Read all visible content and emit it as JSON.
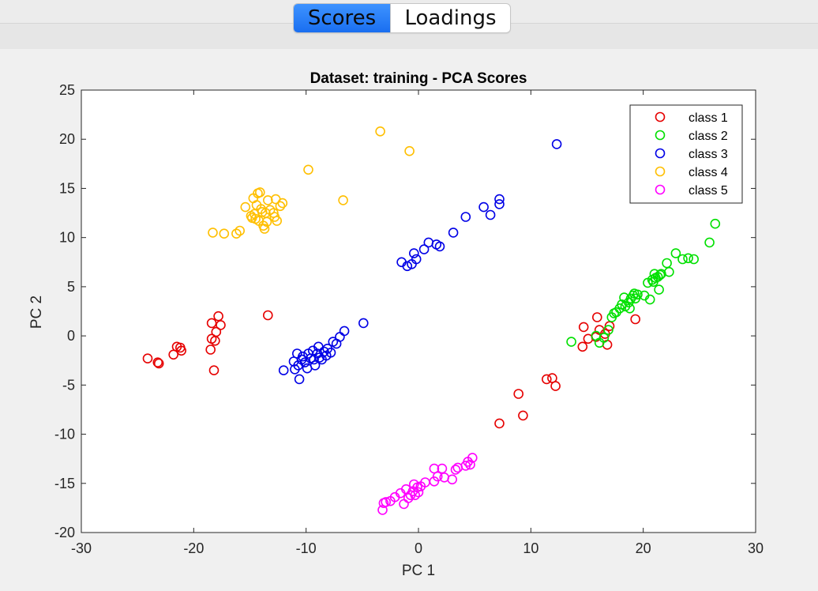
{
  "tabs": {
    "scores_label": "Scores",
    "loadings_label": "Loadings",
    "active": "Scores"
  },
  "chart_data": {
    "type": "scatter",
    "title": "Dataset: training - PCA Scores",
    "xlabel": "PC 1",
    "ylabel": "PC 2",
    "xlim": [
      -30,
      30
    ],
    "ylim": [
      -20,
      25
    ],
    "xticks": [
      -30,
      -20,
      -10,
      0,
      10,
      20,
      30
    ],
    "yticks": [
      -20,
      -15,
      -10,
      -5,
      0,
      5,
      10,
      15,
      20,
      25
    ],
    "marker": "open-circle",
    "legend_position": "top-right",
    "series": [
      {
        "name": "class 1",
        "color": "#e60000",
        "points": [
          [
            -24.1,
            -2.3
          ],
          [
            -23.2,
            -2.7
          ],
          [
            -23.1,
            -2.8
          ],
          [
            -21.8,
            -1.9
          ],
          [
            -21.5,
            -1.1
          ],
          [
            -21.2,
            -1.2
          ],
          [
            -21.1,
            -1.5
          ],
          [
            -18.5,
            -1.4
          ],
          [
            -18.4,
            -0.3
          ],
          [
            -18.4,
            1.3
          ],
          [
            -18.2,
            -3.5
          ],
          [
            -18.1,
            -0.5
          ],
          [
            -18.0,
            0.4
          ],
          [
            -17.8,
            2.0
          ],
          [
            -17.6,
            1.1
          ],
          [
            -13.4,
            2.1
          ],
          [
            7.2,
            -8.9
          ],
          [
            8.9,
            -5.9
          ],
          [
            9.3,
            -8.1
          ],
          [
            11.4,
            -4.4
          ],
          [
            11.9,
            -4.3
          ],
          [
            12.2,
            -5.1
          ],
          [
            14.6,
            -1.1
          ],
          [
            14.7,
            0.9
          ],
          [
            15.1,
            -0.3
          ],
          [
            15.8,
            -0.1
          ],
          [
            15.9,
            1.9
          ],
          [
            16.1,
            0.6
          ],
          [
            16.6,
            0.2
          ],
          [
            16.8,
            -0.9
          ],
          [
            17.0,
            1.0
          ],
          [
            19.3,
            1.7
          ]
        ]
      },
      {
        "name": "class 2",
        "color": "#00e000",
        "points": [
          [
            13.6,
            -0.6
          ],
          [
            15.8,
            0.0
          ],
          [
            16.1,
            -0.7
          ],
          [
            16.5,
            -0.2
          ],
          [
            16.9,
            0.6
          ],
          [
            17.2,
            1.9
          ],
          [
            17.4,
            2.3
          ],
          [
            17.6,
            2.4
          ],
          [
            17.9,
            2.8
          ],
          [
            18.1,
            3.2
          ],
          [
            18.3,
            3.9
          ],
          [
            18.4,
            3.0
          ],
          [
            18.7,
            3.4
          ],
          [
            18.8,
            2.8
          ],
          [
            18.9,
            3.8
          ],
          [
            19.1,
            4.1
          ],
          [
            19.2,
            4.3
          ],
          [
            19.3,
            3.8
          ],
          [
            19.5,
            4.2
          ],
          [
            20.1,
            4.1
          ],
          [
            20.4,
            5.4
          ],
          [
            20.6,
            3.7
          ],
          [
            20.8,
            5.7
          ],
          [
            20.9,
            5.5
          ],
          [
            21.0,
            6.3
          ],
          [
            21.1,
            5.9
          ],
          [
            21.3,
            6.0
          ],
          [
            21.4,
            4.7
          ],
          [
            21.5,
            6.2
          ],
          [
            21.6,
            6.3
          ],
          [
            22.1,
            7.4
          ],
          [
            22.3,
            6.5
          ],
          [
            22.9,
            8.4
          ],
          [
            23.5,
            7.8
          ],
          [
            24.0,
            7.9
          ],
          [
            24.5,
            7.8
          ],
          [
            25.9,
            9.5
          ],
          [
            26.4,
            11.4
          ]
        ]
      },
      {
        "name": "class 3",
        "color": "#0000e6",
        "points": [
          [
            -12.0,
            -3.5
          ],
          [
            -11.1,
            -2.6
          ],
          [
            -11.0,
            -3.4
          ],
          [
            -10.8,
            -1.8
          ],
          [
            -10.7,
            -3.0
          ],
          [
            -10.6,
            -4.4
          ],
          [
            -10.4,
            -2.4
          ],
          [
            -10.3,
            -2.1
          ],
          [
            -10.1,
            -2.7
          ],
          [
            -9.9,
            -3.3
          ],
          [
            -9.8,
            -1.8
          ],
          [
            -9.6,
            -2.3
          ],
          [
            -9.4,
            -1.5
          ],
          [
            -9.3,
            -2.4
          ],
          [
            -9.2,
            -3.0
          ],
          [
            -9.0,
            -1.8
          ],
          [
            -8.9,
            -1.1
          ],
          [
            -8.8,
            -2.2
          ],
          [
            -8.6,
            -2.4
          ],
          [
            -8.4,
            -1.6
          ],
          [
            -8.2,
            -2.0
          ],
          [
            -8.1,
            -1.3
          ],
          [
            -7.8,
            -1.7
          ],
          [
            -7.6,
            -0.6
          ],
          [
            -7.3,
            -0.8
          ],
          [
            -7.0,
            -0.1
          ],
          [
            -6.6,
            0.5
          ],
          [
            -4.9,
            1.3
          ],
          [
            -1.5,
            7.5
          ],
          [
            -1.0,
            7.1
          ],
          [
            -0.6,
            7.3
          ],
          [
            -0.4,
            8.4
          ],
          [
            -0.2,
            7.8
          ],
          [
            0.5,
            8.8
          ],
          [
            0.9,
            9.5
          ],
          [
            1.6,
            9.3
          ],
          [
            1.9,
            9.1
          ],
          [
            3.1,
            10.5
          ],
          [
            4.2,
            12.1
          ],
          [
            5.8,
            13.1
          ],
          [
            6.4,
            12.3
          ],
          [
            7.2,
            13.4
          ],
          [
            7.2,
            13.9
          ],
          [
            12.3,
            19.5
          ]
        ]
      },
      {
        "name": "class 4",
        "color": "#ffbf00",
        "points": [
          [
            -18.3,
            10.5
          ],
          [
            -17.3,
            10.4
          ],
          [
            -16.2,
            10.4
          ],
          [
            -15.9,
            10.7
          ],
          [
            -15.4,
            13.1
          ],
          [
            -14.9,
            12.2
          ],
          [
            -14.8,
            12.0
          ],
          [
            -14.7,
            14.0
          ],
          [
            -14.6,
            12.4
          ],
          [
            -14.5,
            11.9
          ],
          [
            -14.4,
            13.3
          ],
          [
            -14.3,
            14.5
          ],
          [
            -14.2,
            11.7
          ],
          [
            -14.1,
            14.6
          ],
          [
            -14.0,
            12.9
          ],
          [
            -13.9,
            12.6
          ],
          [
            -13.8,
            11.2
          ],
          [
            -13.7,
            10.9
          ],
          [
            -13.6,
            12.5
          ],
          [
            -13.5,
            11.6
          ],
          [
            -13.4,
            13.8
          ],
          [
            -13.2,
            12.8
          ],
          [
            -12.9,
            12.5
          ],
          [
            -12.8,
            12.1
          ],
          [
            -12.7,
            13.9
          ],
          [
            -12.6,
            11.7
          ],
          [
            -12.3,
            13.2
          ],
          [
            -12.1,
            13.5
          ],
          [
            -9.8,
            16.9
          ],
          [
            -6.7,
            13.8
          ],
          [
            -3.4,
            20.8
          ],
          [
            -0.8,
            18.8
          ]
        ]
      },
      {
        "name": "class 5",
        "color": "#ff00ff",
        "points": [
          [
            -3.2,
            -17.7
          ],
          [
            -3.1,
            -17.0
          ],
          [
            -2.9,
            -16.9
          ],
          [
            -2.5,
            -16.8
          ],
          [
            -2.1,
            -16.4
          ],
          [
            -1.6,
            -16.0
          ],
          [
            -1.3,
            -17.1
          ],
          [
            -1.1,
            -15.6
          ],
          [
            -0.9,
            -16.5
          ],
          [
            -0.7,
            -16.2
          ],
          [
            -0.5,
            -15.8
          ],
          [
            -0.4,
            -15.1
          ],
          [
            -0.3,
            -16.2
          ],
          [
            -0.1,
            -15.4
          ],
          [
            0.0,
            -15.9
          ],
          [
            0.2,
            -15.3
          ],
          [
            0.6,
            -14.9
          ],
          [
            1.4,
            -14.8
          ],
          [
            1.4,
            -13.5
          ],
          [
            1.7,
            -14.3
          ],
          [
            2.1,
            -13.5
          ],
          [
            2.3,
            -14.4
          ],
          [
            3.0,
            -14.6
          ],
          [
            3.3,
            -13.6
          ],
          [
            3.5,
            -13.4
          ],
          [
            4.2,
            -13.2
          ],
          [
            4.4,
            -12.8
          ],
          [
            4.6,
            -13.1
          ],
          [
            4.8,
            -12.4
          ]
        ]
      }
    ]
  }
}
